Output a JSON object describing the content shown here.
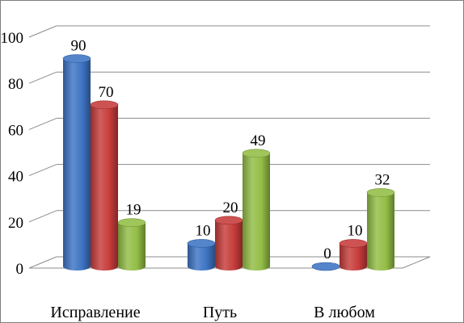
{
  "chart_data": {
    "type": "bar",
    "style": "3d-cylinder",
    "categories": [
      "Исправление",
      "Путь",
      "В любом"
    ],
    "series": [
      {
        "values": [
          90,
          10,
          0
        ],
        "color": "#3d74c4"
      },
      {
        "values": [
          70,
          20,
          10
        ],
        "color": "#c63c3a"
      },
      {
        "values": [
          19,
          49,
          32
        ],
        "color": "#92bd45"
      }
    ],
    "yticks": [
      "0",
      "20",
      "40",
      "60",
      "80",
      "100"
    ],
    "ylim": [
      0,
      100
    ],
    "grid": true,
    "legend": "none"
  }
}
